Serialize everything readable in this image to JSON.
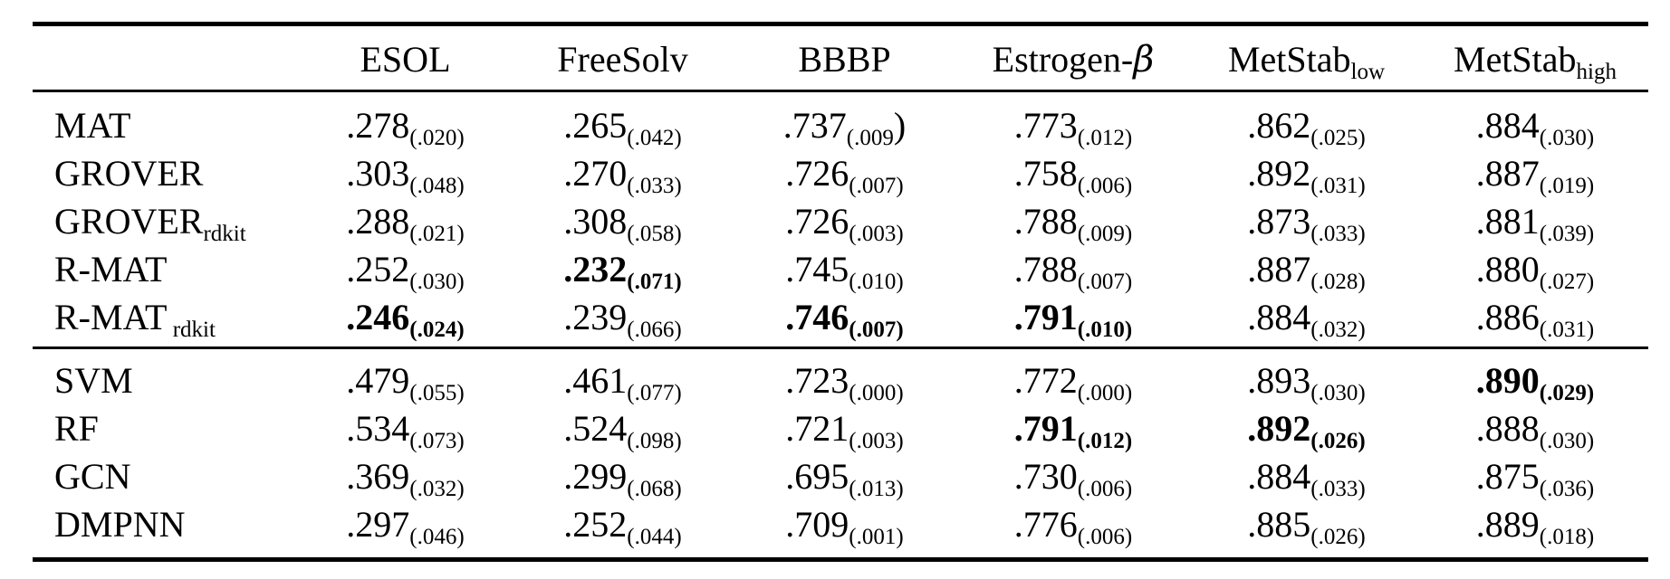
{
  "colors": {
    "background": "#ffffff",
    "text": "#000000",
    "rule": "#000000"
  },
  "table": {
    "method_column_header": "",
    "columns": [
      {
        "base": "ESOL",
        "math": "",
        "sub": ""
      },
      {
        "base": "FreeSolv",
        "math": "",
        "sub": ""
      },
      {
        "base": "BBBP",
        "math": "",
        "sub": ""
      },
      {
        "base": "Estrogen-",
        "math": "β",
        "sub": ""
      },
      {
        "base": "MetStab",
        "math": "",
        "sub": "low"
      },
      {
        "base": "MetStab",
        "math": "",
        "sub": "high"
      }
    ],
    "sections": [
      {
        "rows": [
          {
            "name": "MAT",
            "sub": "",
            "cells": [
              {
                "v": ".278",
                "s": "(.020)",
                "suf": "",
                "bold": false
              },
              {
                "v": ".265",
                "s": "(.042)",
                "suf": "",
                "bold": false
              },
              {
                "v": ".737",
                "s": "(.009",
                "suf": ")",
                "bold": false
              },
              {
                "v": ".773",
                "s": "(.012)",
                "suf": "",
                "bold": false
              },
              {
                "v": ".862",
                "s": "(.025)",
                "suf": "",
                "bold": false
              },
              {
                "v": ".884",
                "s": "(.030)",
                "suf": "",
                "bold": false
              }
            ]
          },
          {
            "name": "GROVER",
            "sub": "",
            "cells": [
              {
                "v": ".303",
                "s": "(.048)",
                "suf": "",
                "bold": false
              },
              {
                "v": ".270",
                "s": "(.033)",
                "suf": "",
                "bold": false
              },
              {
                "v": ".726",
                "s": "(.007)",
                "suf": "",
                "bold": false
              },
              {
                "v": ".758",
                "s": "(.006)",
                "suf": "",
                "bold": false
              },
              {
                "v": ".892",
                "s": "(.031)",
                "suf": "",
                "bold": false
              },
              {
                "v": ".887",
                "s": "(.019)",
                "suf": "",
                "bold": false
              }
            ]
          },
          {
            "name": "GROVER",
            "sub": "rdkit",
            "cells": [
              {
                "v": ".288",
                "s": "(.021)",
                "suf": "",
                "bold": false
              },
              {
                "v": ".308",
                "s": "(.058)",
                "suf": "",
                "bold": false
              },
              {
                "v": ".726",
                "s": "(.003)",
                "suf": "",
                "bold": false
              },
              {
                "v": ".788",
                "s": "(.009)",
                "suf": "",
                "bold": false
              },
              {
                "v": ".873",
                "s": "(.033)",
                "suf": "",
                "bold": false
              },
              {
                "v": ".881",
                "s": "(.039)",
                "suf": "",
                "bold": false
              }
            ]
          },
          {
            "name": "R-MAT",
            "sub": "",
            "cells": [
              {
                "v": ".252",
                "s": "(.030)",
                "suf": "",
                "bold": false
              },
              {
                "v": ".232",
                "s": "(.071)",
                "suf": "",
                "bold": true
              },
              {
                "v": ".745",
                "s": "(.010)",
                "suf": "",
                "bold": false
              },
              {
                "v": ".788",
                "s": "(.007)",
                "suf": "",
                "bold": false
              },
              {
                "v": ".887",
                "s": "(.028)",
                "suf": "",
                "bold": false
              },
              {
                "v": ".880",
                "s": "(.027)",
                "suf": "",
                "bold": false
              }
            ]
          },
          {
            "name": "R-MAT",
            "sub": " rdkit",
            "cells": [
              {
                "v": ".246",
                "s": "(.024)",
                "suf": "",
                "bold": true
              },
              {
                "v": ".239",
                "s": "(.066)",
                "suf": "",
                "bold": false
              },
              {
                "v": ".746",
                "s": "(.007)",
                "suf": "",
                "bold": true
              },
              {
                "v": ".791",
                "s": "(.010)",
                "suf": "",
                "bold": true
              },
              {
                "v": ".884",
                "s": "(.032)",
                "suf": "",
                "bold": false
              },
              {
                "v": ".886",
                "s": "(.031)",
                "suf": "",
                "bold": false
              }
            ]
          }
        ]
      },
      {
        "rows": [
          {
            "name": "SVM",
            "sub": "",
            "cells": [
              {
                "v": ".479",
                "s": "(.055)",
                "suf": "",
                "bold": false
              },
              {
                "v": ".461",
                "s": "(.077)",
                "suf": "",
                "bold": false
              },
              {
                "v": ".723",
                "s": "(.000)",
                "suf": "",
                "bold": false
              },
              {
                "v": ".772",
                "s": "(.000)",
                "suf": "",
                "bold": false
              },
              {
                "v": ".893",
                "s": "(.030)",
                "suf": "",
                "bold": false
              },
              {
                "v": ".890",
                "s": "(.029)",
                "suf": "",
                "bold": true
              }
            ]
          },
          {
            "name": "RF",
            "sub": "",
            "cells": [
              {
                "v": ".534",
                "s": "(.073)",
                "suf": "",
                "bold": false
              },
              {
                "v": ".524",
                "s": "(.098)",
                "suf": "",
                "bold": false
              },
              {
                "v": ".721",
                "s": "(.003)",
                "suf": "",
                "bold": false
              },
              {
                "v": ".791",
                "s": "(.012)",
                "suf": "",
                "bold": true
              },
              {
                "v": ".892",
                "s": "(.026)",
                "suf": "",
                "bold": true
              },
              {
                "v": ".888",
                "s": "(.030)",
                "suf": "",
                "bold": false
              }
            ]
          },
          {
            "name": "GCN",
            "sub": "",
            "cells": [
              {
                "v": ".369",
                "s": "(.032)",
                "suf": "",
                "bold": false
              },
              {
                "v": ".299",
                "s": "(.068)",
                "suf": "",
                "bold": false
              },
              {
                "v": ".695",
                "s": "(.013)",
                "suf": "",
                "bold": false
              },
              {
                "v": ".730",
                "s": "(.006)",
                "suf": "",
                "bold": false
              },
              {
                "v": ".884",
                "s": "(.033)",
                "suf": "",
                "bold": false
              },
              {
                "v": ".875",
                "s": "(.036)",
                "suf": "",
                "bold": false
              }
            ]
          },
          {
            "name": "DMPNN",
            "sub": "",
            "cells": [
              {
                "v": ".297",
                "s": "(.046)",
                "suf": "",
                "bold": false
              },
              {
                "v": ".252",
                "s": "(.044)",
                "suf": "",
                "bold": false
              },
              {
                "v": ".709",
                "s": "(.001)",
                "suf": "",
                "bold": false
              },
              {
                "v": ".776",
                "s": "(.006)",
                "suf": "",
                "bold": false
              },
              {
                "v": ".885",
                "s": "(.026)",
                "suf": "",
                "bold": false
              },
              {
                "v": ".889",
                "s": "(.018)",
                "suf": "",
                "bold": false
              }
            ]
          }
        ]
      }
    ]
  }
}
